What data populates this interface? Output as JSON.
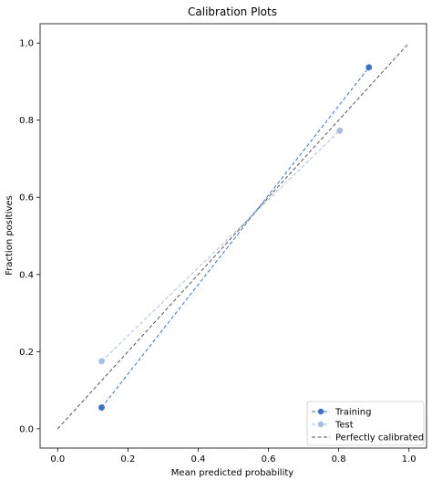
{
  "chart_data": {
    "type": "line",
    "title": "Calibration Plots",
    "xlabel": "Mean predicted probability",
    "ylabel": "Fraction positives",
    "xlim": [
      -0.05,
      1.05
    ],
    "ylim": [
      -0.05,
      1.05
    ],
    "xticks": [
      0.0,
      0.2,
      0.4,
      0.6,
      0.8,
      1.0
    ],
    "yticks": [
      0.0,
      0.2,
      0.4,
      0.6,
      0.8,
      1.0
    ],
    "xtick_labels": [
      "0.0",
      "0.2",
      "0.4",
      "0.6",
      "0.8",
      "1.0"
    ],
    "ytick_labels": [
      "0.0",
      "0.2",
      "0.4",
      "0.6",
      "0.8",
      "1.0"
    ],
    "grid": false,
    "legend_position": "bottom-right",
    "series": [
      {
        "name": "Training",
        "color": "#3b72c9",
        "style": "dashed",
        "marker": "circle",
        "points": [
          {
            "x": 0.125,
            "y": 0.055
          },
          {
            "x": 0.886,
            "y": 0.937
          }
        ]
      },
      {
        "name": "Test",
        "color": "#a9bedf",
        "style": "dashed",
        "marker": "circle",
        "points": [
          {
            "x": 0.125,
            "y": 0.175
          },
          {
            "x": 0.803,
            "y": 0.773
          }
        ]
      },
      {
        "name": "Perfectly calibrated",
        "color": "#555555",
        "style": "dashed",
        "marker": "none",
        "points": [
          {
            "x": 0.0,
            "y": 0.0
          },
          {
            "x": 1.0,
            "y": 1.0
          }
        ]
      }
    ]
  }
}
